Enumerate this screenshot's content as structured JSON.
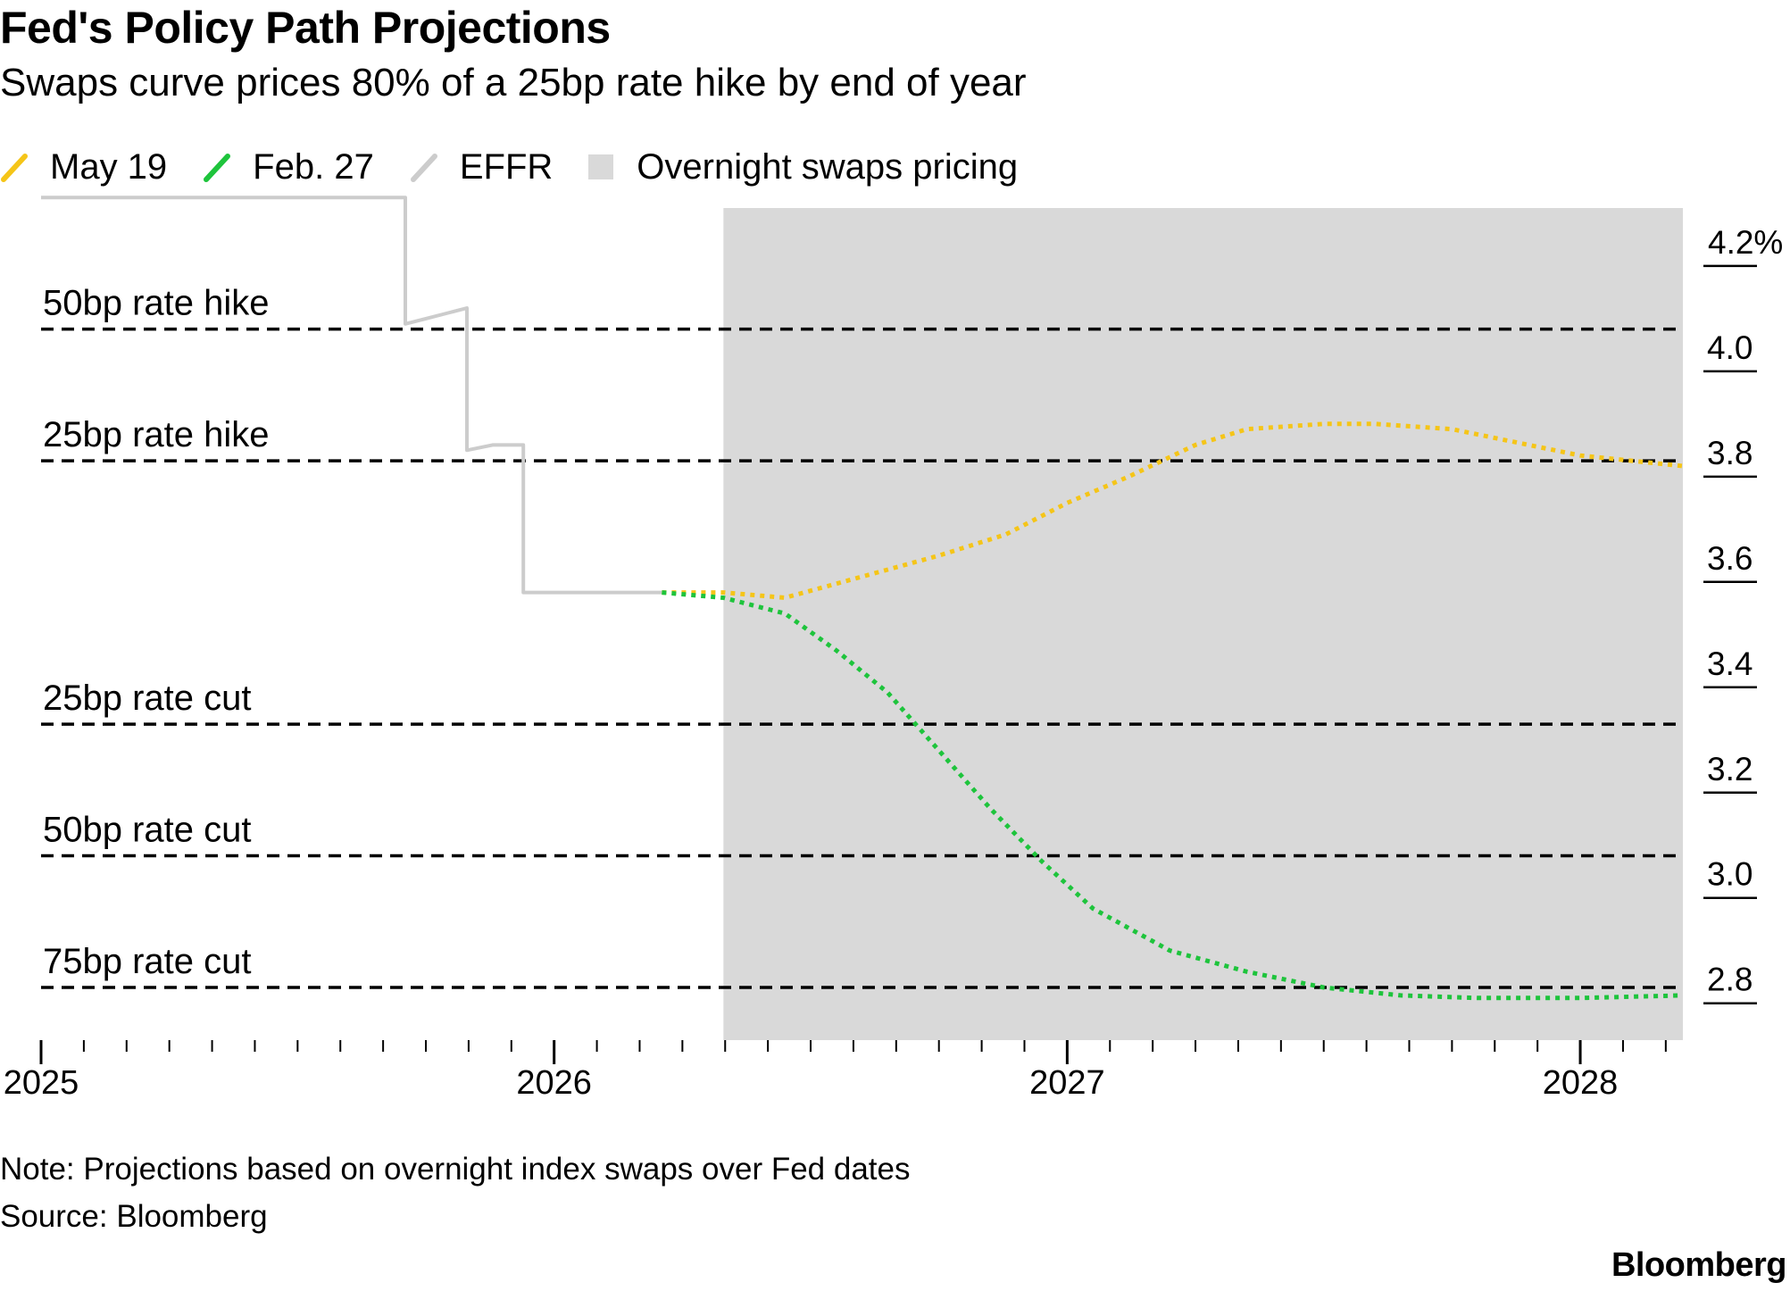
{
  "header": {
    "title": "Fed's Policy Path Projections",
    "subtitle": "Swaps curve prices 80% of a 25bp rate hike by end of year"
  },
  "legend": [
    {
      "label": "May 19",
      "color": "#f5c518",
      "kind": "line"
    },
    {
      "label": "Feb. 27",
      "color": "#1ec43c",
      "kind": "line"
    },
    {
      "label": "EFFR",
      "color": "#cccccc",
      "kind": "line"
    },
    {
      "label": "Overnight swaps pricing",
      "color": "#d9d9d9",
      "kind": "box"
    }
  ],
  "footer": {
    "note": "Note: Projections based on overnight index swaps over Fed dates",
    "source": "Source: Bloomberg",
    "brand": "Bloomberg"
  },
  "chart_data": {
    "type": "line",
    "x_axis": {
      "range": [
        2025.0,
        2028.2
      ],
      "tick_labels": [
        "2025",
        "2026",
        "2027",
        "2028"
      ]
    },
    "y_axis": {
      "range": [
        2.73,
        4.31
      ],
      "ticks": [
        4.2,
        4.0,
        3.8,
        3.6,
        3.4,
        3.2,
        3.0,
        2.8
      ],
      "tick_labels": [
        "4.2%",
        "4.0",
        "3.8",
        "3.6",
        "3.4",
        "3.2",
        "3.0",
        "2.8"
      ],
      "position": "right"
    },
    "shaded_region": {
      "label": "Overnight swaps pricing",
      "x_start": 2026.33,
      "x_end": 2028.2,
      "color": "#d9d9d9"
    },
    "reference_lines": [
      {
        "label": "50bp rate hike",
        "y": 4.08
      },
      {
        "label": "25bp rate hike",
        "y": 3.83
      },
      {
        "label": "25bp rate cut",
        "y": 3.33
      },
      {
        "label": "50bp rate cut",
        "y": 3.08
      },
      {
        "label": "75bp rate cut",
        "y": 2.83
      }
    ],
    "series": [
      {
        "name": "EFFR",
        "color": "#cccccc",
        "style": "solid",
        "points": [
          [
            2025.0,
            4.33
          ],
          [
            2025.71,
            4.33
          ],
          [
            2025.71,
            4.09
          ],
          [
            2025.75,
            4.1
          ],
          [
            2025.79,
            4.11
          ],
          [
            2025.83,
            4.12
          ],
          [
            2025.83,
            3.85
          ],
          [
            2025.88,
            3.86
          ],
          [
            2025.94,
            3.86
          ],
          [
            2025.94,
            3.58
          ],
          [
            2026.1,
            3.58
          ],
          [
            2026.21,
            3.58
          ]
        ]
      },
      {
        "name": "May 19",
        "color": "#f5c518",
        "style": "dotted",
        "points": [
          [
            2026.21,
            3.58
          ],
          [
            2026.33,
            3.58
          ],
          [
            2026.45,
            3.57
          ],
          [
            2026.6,
            3.61
          ],
          [
            2026.75,
            3.65
          ],
          [
            2026.88,
            3.69
          ],
          [
            2027.0,
            3.75
          ],
          [
            2027.12,
            3.8
          ],
          [
            2027.25,
            3.86
          ],
          [
            2027.35,
            3.89
          ],
          [
            2027.5,
            3.9
          ],
          [
            2027.6,
            3.9
          ],
          [
            2027.75,
            3.89
          ],
          [
            2027.9,
            3.86
          ],
          [
            2028.0,
            3.84
          ],
          [
            2028.2,
            3.82
          ]
        ]
      },
      {
        "name": "Feb. 27",
        "color": "#1ec43c",
        "style": "dotted",
        "points": [
          [
            2026.21,
            3.58
          ],
          [
            2026.33,
            3.57
          ],
          [
            2026.45,
            3.54
          ],
          [
            2026.55,
            3.47
          ],
          [
            2026.65,
            3.39
          ],
          [
            2026.75,
            3.28
          ],
          [
            2026.85,
            3.17
          ],
          [
            2026.95,
            3.07
          ],
          [
            2027.05,
            2.98
          ],
          [
            2027.2,
            2.9
          ],
          [
            2027.35,
            2.86
          ],
          [
            2027.5,
            2.83
          ],
          [
            2027.65,
            2.815
          ],
          [
            2027.8,
            2.81
          ],
          [
            2028.0,
            2.81
          ],
          [
            2028.2,
            2.815
          ]
        ]
      }
    ]
  }
}
